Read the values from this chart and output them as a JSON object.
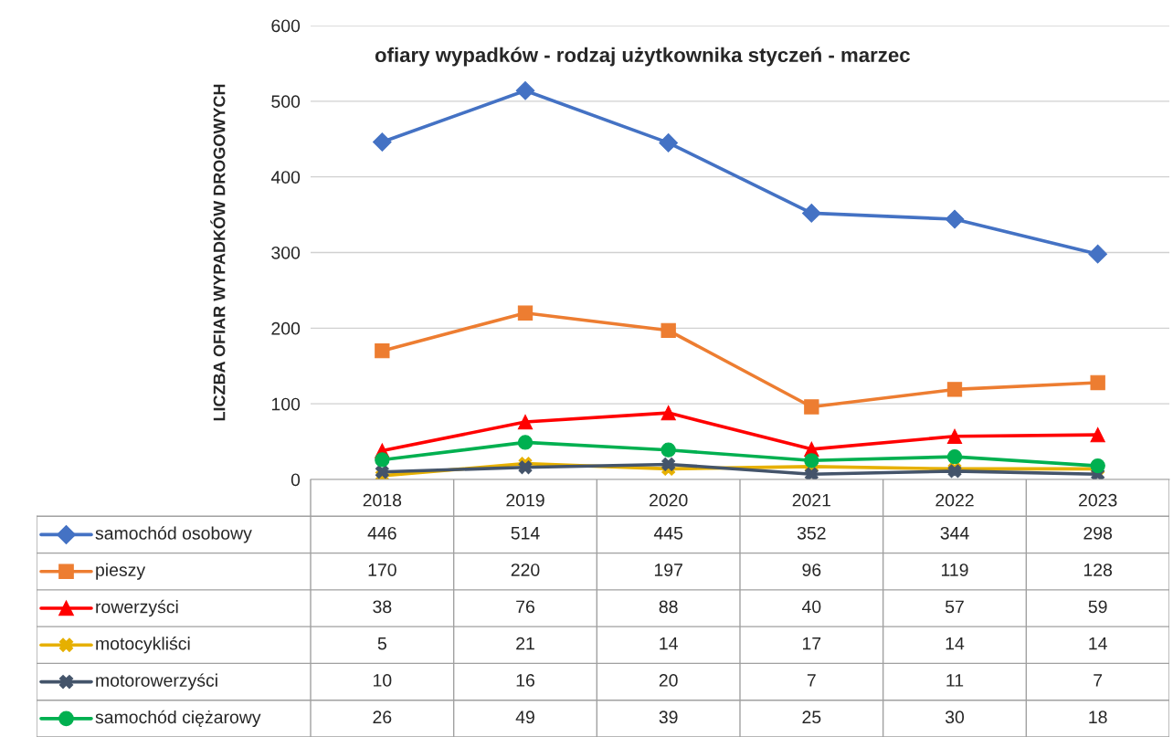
{
  "chart_data": {
    "type": "line",
    "title": "ofiary wypadków - rodzaj użytkownika styczeń - marzec",
    "ylabel": "LICZBA OFIAR WYPADKÓW DROGOWYCH",
    "categories": [
      "2018",
      "2019",
      "2020",
      "2021",
      "2022",
      "2023"
    ],
    "ylim": [
      0,
      600
    ],
    "yticks": [
      0,
      100,
      200,
      300,
      400,
      500,
      600
    ],
    "grid": "y",
    "data_labels": true,
    "legend": "bottom left",
    "series": [
      {
        "name": "samochód osobowy",
        "color": "#4472c4",
        "marker": "diamond",
        "values": [
          446,
          514,
          445,
          352,
          344,
          298
        ]
      },
      {
        "name": "pieszy",
        "color": "#ed7d31",
        "marker": "square",
        "values": [
          170,
          220,
          197,
          96,
          119,
          128
        ]
      },
      {
        "name": "rowerzyści",
        "color": "#ff0000",
        "marker": "triangle",
        "values": [
          38,
          76,
          88,
          40,
          57,
          59
        ]
      },
      {
        "name": "motocykliści",
        "color": "#e6b000",
        "marker": "cross",
        "values": [
          5,
          21,
          14,
          17,
          14,
          14
        ]
      },
      {
        "name": "motorowerzyści",
        "color": "#44546a",
        "marker": "cross",
        "values": [
          10,
          16,
          20,
          7,
          11,
          7
        ]
      },
      {
        "name": "samochód ciężarowy",
        "color": "#00b050",
        "marker": "circle",
        "values": [
          26,
          49,
          39,
          25,
          30,
          18
        ]
      }
    ]
  }
}
